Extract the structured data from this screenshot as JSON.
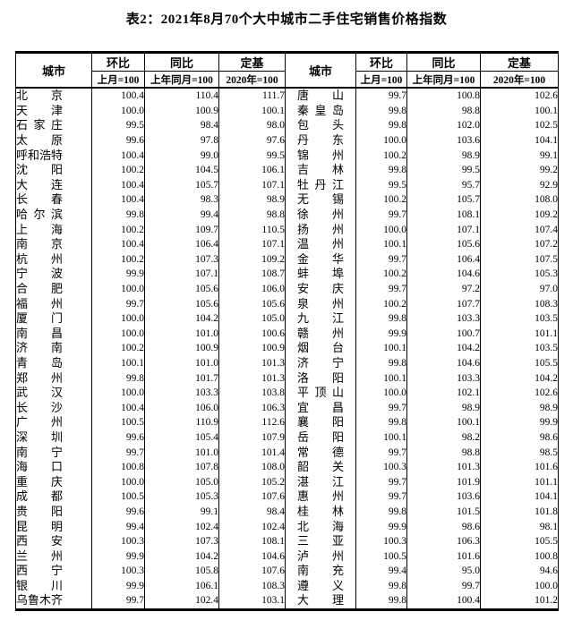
{
  "title": "表2：2021年8月70个大中城市二手住宅销售价格指数",
  "table": {
    "header": {
      "city": "城市",
      "mom_label": "环比",
      "mom_sub": "上月=100",
      "yoy_label": "同比",
      "yoy_sub": "上年同月=100",
      "base_label": "定基",
      "base_sub": "2020年=100"
    },
    "rows_left": [
      [
        "北京",
        "100.4",
        "110.4",
        "111.7"
      ],
      [
        "天津",
        "100.0",
        "100.9",
        "100.1"
      ],
      [
        "石家庄",
        "99.5",
        "98.4",
        "98.0"
      ],
      [
        "太原",
        "99.6",
        "97.8",
        "97.6"
      ],
      [
        "呼和浩特",
        "100.4",
        "99.0",
        "99.5"
      ],
      [
        "沈阳",
        "100.2",
        "104.5",
        "106.1"
      ],
      [
        "大连",
        "100.4",
        "105.7",
        "107.1"
      ],
      [
        "长春",
        "100.4",
        "98.3",
        "98.9"
      ],
      [
        "哈尔滨",
        "99.8",
        "99.4",
        "98.8"
      ],
      [
        "上海",
        "100.2",
        "109.7",
        "110.5"
      ],
      [
        "南京",
        "100.4",
        "106.4",
        "107.1"
      ],
      [
        "杭州",
        "100.2",
        "107.3",
        "109.2"
      ],
      [
        "宁波",
        "99.9",
        "107.1",
        "108.7"
      ],
      [
        "合肥",
        "100.0",
        "105.6",
        "106.0"
      ],
      [
        "福州",
        "99.7",
        "105.6",
        "105.6"
      ],
      [
        "厦门",
        "100.0",
        "104.2",
        "105.0"
      ],
      [
        "南昌",
        "100.0",
        "101.0",
        "100.6"
      ],
      [
        "济南",
        "100.2",
        "100.9",
        "100.9"
      ],
      [
        "青岛",
        "100.1",
        "101.0",
        "101.3"
      ],
      [
        "郑州",
        "99.8",
        "101.7",
        "101.3"
      ],
      [
        "武汉",
        "100.0",
        "103.3",
        "103.8"
      ],
      [
        "长沙",
        "100.4",
        "106.0",
        "106.3"
      ],
      [
        "广州",
        "100.5",
        "110.9",
        "112.6"
      ],
      [
        "深圳",
        "99.6",
        "105.4",
        "107.9"
      ],
      [
        "南宁",
        "99.7",
        "101.0",
        "101.4"
      ],
      [
        "海口",
        "100.8",
        "107.8",
        "108.0"
      ],
      [
        "重庆",
        "100.0",
        "105.0",
        "105.2"
      ],
      [
        "成都",
        "100.5",
        "105.3",
        "107.6"
      ],
      [
        "贵阳",
        "99.6",
        "99.1",
        "98.4"
      ],
      [
        "昆明",
        "99.4",
        "102.4",
        "102.4"
      ],
      [
        "西安",
        "100.3",
        "107.3",
        "108.1"
      ],
      [
        "兰州",
        "99.9",
        "104.2",
        "104.6"
      ],
      [
        "西宁",
        "100.3",
        "105.8",
        "107.6"
      ],
      [
        "银川",
        "99.9",
        "106.1",
        "108.3"
      ],
      [
        "乌鲁木齐",
        "99.7",
        "102.4",
        "103.1"
      ]
    ],
    "rows_right": [
      [
        "唐山",
        "99.7",
        "100.8",
        "102.6"
      ],
      [
        "秦皇岛",
        "99.8",
        "98.8",
        "100.1"
      ],
      [
        "包头",
        "99.8",
        "102.0",
        "102.5"
      ],
      [
        "丹东",
        "100.0",
        "103.6",
        "104.1"
      ],
      [
        "锦州",
        "100.2",
        "98.9",
        "99.1"
      ],
      [
        "吉林",
        "99.8",
        "99.5",
        "99.2"
      ],
      [
        "牡丹江",
        "99.5",
        "95.7",
        "92.9"
      ],
      [
        "无锡",
        "100.2",
        "105.7",
        "108.0"
      ],
      [
        "徐州",
        "99.7",
        "108.1",
        "109.2"
      ],
      [
        "扬州",
        "100.0",
        "107.1",
        "107.4"
      ],
      [
        "温州",
        "100.1",
        "105.6",
        "107.2"
      ],
      [
        "金华",
        "99.7",
        "106.4",
        "107.5"
      ],
      [
        "蚌埠",
        "100.2",
        "104.6",
        "105.3"
      ],
      [
        "安庆",
        "99.7",
        "97.2",
        "97.0"
      ],
      [
        "泉州",
        "100.2",
        "107.7",
        "108.3"
      ],
      [
        "九江",
        "99.8",
        "103.3",
        "103.5"
      ],
      [
        "赣州",
        "99.9",
        "100.7",
        "101.1"
      ],
      [
        "烟台",
        "100.1",
        "104.2",
        "103.5"
      ],
      [
        "济宁",
        "99.8",
        "104.6",
        "105.5"
      ],
      [
        "洛阳",
        "100.1",
        "103.3",
        "104.2"
      ],
      [
        "平顶山",
        "100.0",
        "102.1",
        "102.6"
      ],
      [
        "宜昌",
        "99.7",
        "98.9",
        "98.9"
      ],
      [
        "襄阳",
        "99.8",
        "100.1",
        "99.9"
      ],
      [
        "岳阳",
        "100.1",
        "98.2",
        "98.6"
      ],
      [
        "常德",
        "99.7",
        "98.8",
        "98.5"
      ],
      [
        "韶关",
        "100.3",
        "101.3",
        "101.6"
      ],
      [
        "湛江",
        "99.7",
        "101.9",
        "101.1"
      ],
      [
        "惠州",
        "99.7",
        "103.6",
        "104.1"
      ],
      [
        "桂林",
        "99.8",
        "101.5",
        "101.8"
      ],
      [
        "北海",
        "99.9",
        "98.6",
        "98.1"
      ],
      [
        "三亚",
        "100.3",
        "106.3",
        "105.5"
      ],
      [
        "泸州",
        "100.5",
        "101.6",
        "100.8"
      ],
      [
        "南充",
        "99.4",
        "95.0",
        "94.6"
      ],
      [
        "遵义",
        "99.8",
        "99.7",
        "100.0"
      ],
      [
        "大理",
        "99.8",
        "100.4",
        "101.2"
      ]
    ]
  }
}
